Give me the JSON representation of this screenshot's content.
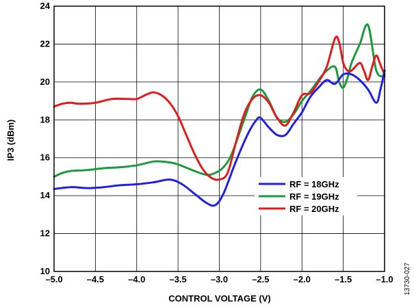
{
  "chart_data": {
    "type": "line",
    "xlabel": "CONTROL VOLTAGE (V)",
    "ylabel": "IP3 (dBm)",
    "xlim": [
      -5.0,
      -1.0
    ],
    "ylim": [
      10,
      24
    ],
    "x_ticks": [
      "–5.0",
      "–4.5",
      "–4.0",
      "–3.5",
      "–3.0",
      "–2.5",
      "–2.0",
      "–1.5",
      "–1.0"
    ],
    "y_ticks": [
      "10",
      "12",
      "14",
      "16",
      "18",
      "20",
      "22",
      "24"
    ],
    "grid": true,
    "legend_position": "center-right",
    "figure_id": "13730-027",
    "series": [
      {
        "name": "RF = 18GHz",
        "color": "#1f1fe6",
        "x": [
          -5.0,
          -4.8,
          -4.6,
          -4.4,
          -4.2,
          -4.0,
          -3.8,
          -3.6,
          -3.45,
          -3.3,
          -3.15,
          -3.05,
          -2.95,
          -2.8,
          -2.65,
          -2.55,
          -2.5,
          -2.4,
          -2.3,
          -2.2,
          -2.1,
          -2.0,
          -1.9,
          -1.8,
          -1.7,
          -1.6,
          -1.5,
          -1.4,
          -1.3,
          -1.2,
          -1.1,
          -1.05,
          -1.0
        ],
        "values": [
          14.35,
          14.45,
          14.4,
          14.45,
          14.55,
          14.6,
          14.7,
          14.85,
          14.6,
          14.1,
          13.6,
          13.5,
          14.1,
          15.8,
          17.3,
          18.0,
          18.1,
          17.6,
          17.2,
          17.2,
          17.8,
          18.4,
          19.2,
          19.7,
          20.1,
          19.9,
          20.4,
          20.4,
          20.1,
          19.6,
          18.9,
          19.6,
          20.6
        ]
      },
      {
        "name": "RF = 19GHz",
        "color": "#1a9a3a",
        "x": [
          -5.0,
          -4.9,
          -4.8,
          -4.6,
          -4.4,
          -4.2,
          -4.0,
          -3.8,
          -3.7,
          -3.6,
          -3.5,
          -3.3,
          -3.15,
          -3.05,
          -2.95,
          -2.85,
          -2.7,
          -2.6,
          -2.5,
          -2.4,
          -2.3,
          -2.2,
          -2.1,
          -2.0,
          -1.9,
          -1.8,
          -1.7,
          -1.6,
          -1.55,
          -1.5,
          -1.45,
          -1.4,
          -1.3,
          -1.2,
          -1.1,
          -1.0
        ],
        "values": [
          15.0,
          15.2,
          15.3,
          15.35,
          15.45,
          15.5,
          15.6,
          15.8,
          15.8,
          15.75,
          15.65,
          15.3,
          15.1,
          15.2,
          15.5,
          16.2,
          18.0,
          19.2,
          19.6,
          19.0,
          18.1,
          17.9,
          18.3,
          19.0,
          19.5,
          20.1,
          20.6,
          20.8,
          20.0,
          19.7,
          20.2,
          21.0,
          22.0,
          23.0,
          20.6,
          20.3
        ]
      },
      {
        "name": "RF = 20GHz",
        "color": "#e11b1b",
        "x": [
          -5.0,
          -4.9,
          -4.8,
          -4.7,
          -4.5,
          -4.3,
          -4.1,
          -4.0,
          -3.9,
          -3.8,
          -3.7,
          -3.6,
          -3.5,
          -3.4,
          -3.3,
          -3.2,
          -3.1,
          -3.0,
          -2.9,
          -2.8,
          -2.7,
          -2.6,
          -2.5,
          -2.4,
          -2.3,
          -2.2,
          -2.1,
          -2.0,
          -1.9,
          -1.8,
          -1.7,
          -1.6,
          -1.55,
          -1.5,
          -1.45,
          -1.4,
          -1.3,
          -1.25,
          -1.2,
          -1.15,
          -1.1,
          -1.05,
          -1.0
        ],
        "values": [
          18.7,
          18.85,
          18.9,
          18.85,
          18.9,
          19.1,
          19.1,
          19.1,
          19.3,
          19.45,
          19.3,
          18.9,
          18.2,
          17.2,
          16.2,
          15.4,
          14.95,
          14.85,
          15.2,
          16.8,
          18.3,
          19.1,
          19.3,
          18.9,
          18.1,
          17.7,
          18.4,
          19.3,
          19.4,
          20.0,
          20.8,
          22.3,
          22.1,
          21.0,
          20.6,
          20.6,
          21.0,
          20.6,
          20.1,
          20.8,
          21.4,
          20.9,
          20.4
        ]
      }
    ]
  }
}
